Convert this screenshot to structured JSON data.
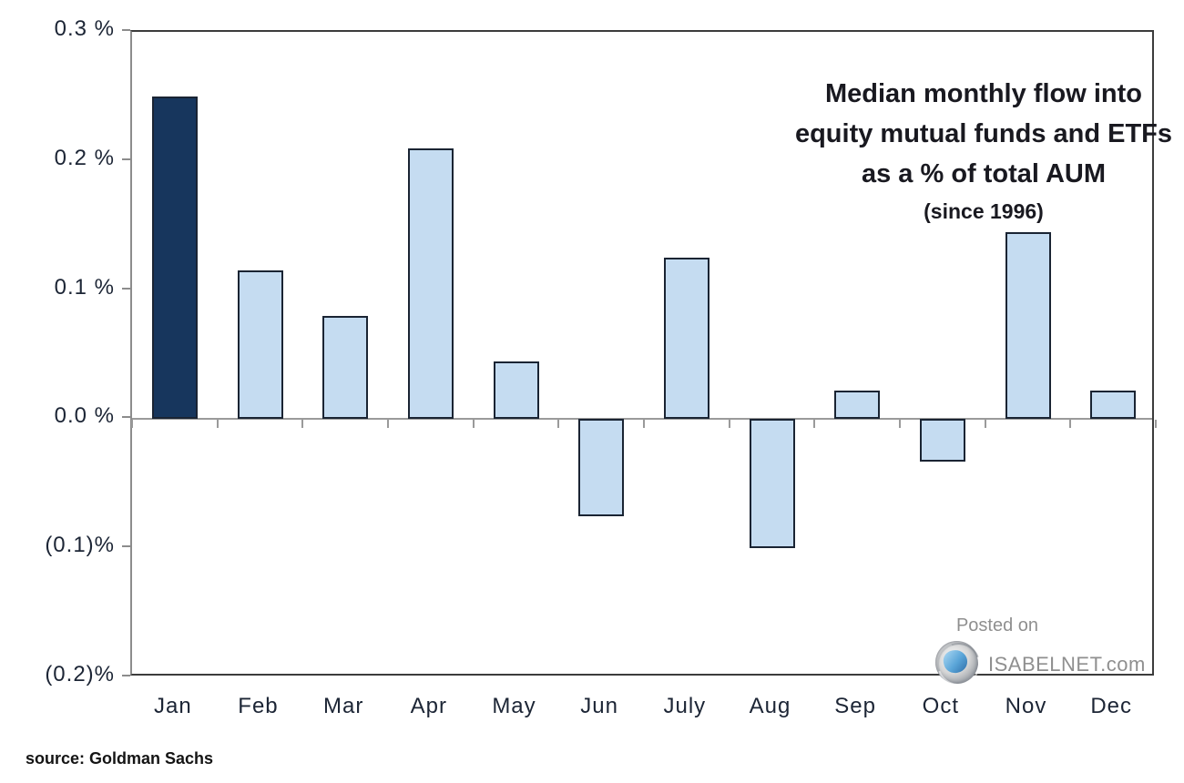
{
  "title": {
    "line1": "Median monthly flow into",
    "line2": "equity mutual funds and ETFs",
    "line3": "as a % of total AUM",
    "line4": "(since 1996)"
  },
  "watermark": {
    "posted_on": "Posted on",
    "site": "ISABELNET.com",
    "logo": "isabelnet-swirl-logo"
  },
  "source": "source: Goldman Sachs",
  "chart_data": {
    "type": "bar",
    "title": "Median monthly flow into equity mutual funds and ETFs as a % of total AUM",
    "subtitle": "(since 1996)",
    "categories": [
      "Jan",
      "Feb",
      "Mar",
      "Apr",
      "May",
      "Jun",
      "July",
      "Aug",
      "Sep",
      "Oct",
      "Nov",
      "Dec"
    ],
    "values": [
      0.25,
      0.115,
      0.08,
      0.21,
      0.045,
      -0.075,
      0.125,
      -0.1,
      0.022,
      -0.033,
      0.145,
      0.022
    ],
    "unit": "% of total AUM",
    "highlight_index": 0,
    "y_tick_labels": [
      "0.3 %",
      "0.2 %",
      "0.1 %",
      "0.0 %",
      "(0.1)%",
      "(0.2)%"
    ],
    "y_tick_values": [
      0.3,
      0.2,
      0.1,
      0.0,
      -0.1,
      -0.2
    ],
    "ylim": [
      -0.2,
      0.3
    ],
    "grid": false,
    "legend": false,
    "colors": {
      "bar_fill": "#C5DCF1",
      "bar_highlight_fill": "#17365D",
      "bar_border": "#1A2433",
      "axis_line": "#9A9A9A",
      "plot_border": "#3C3C3C",
      "text_dark": "#1C2535",
      "text_gray": "#8F8F8F"
    }
  }
}
